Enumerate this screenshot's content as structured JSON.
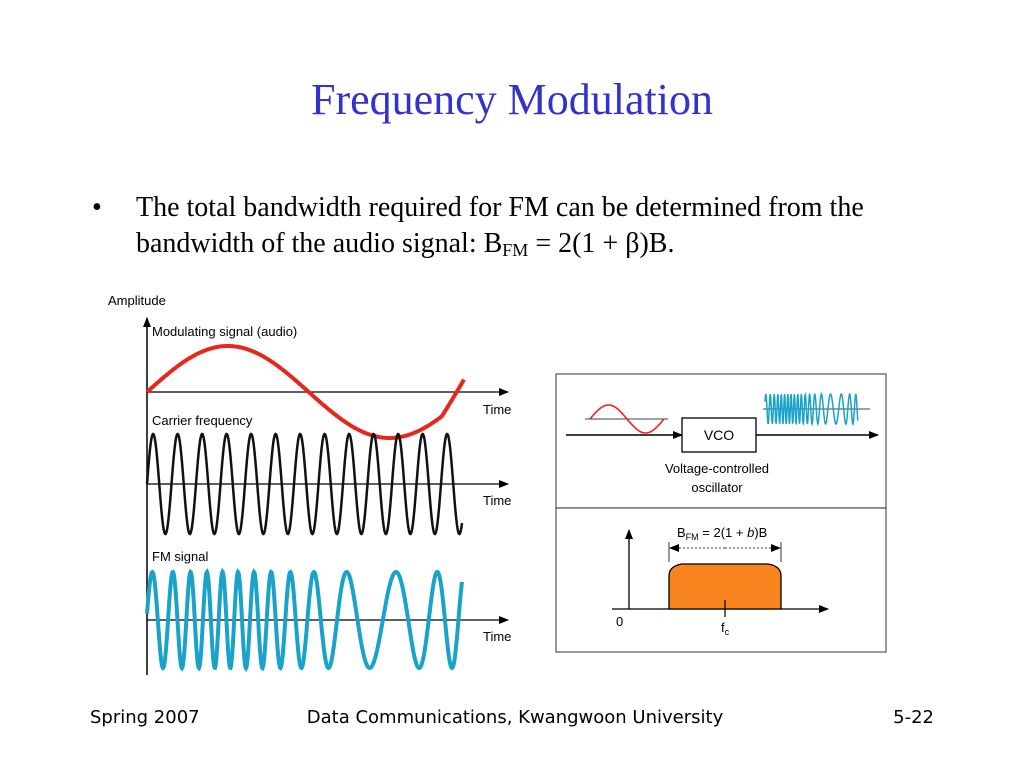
{
  "slide": {
    "title": "Frequency Modulation",
    "bullet_text": "The total bandwidth required for FM can be determined from the bandwidth of the audio signal: B",
    "bullet_sub": "FM",
    "bullet_tail": " = 2(1 + β)B."
  },
  "figure": {
    "amplitude_label": "Amplitude",
    "modulating_label": "Modulating signal (audio)",
    "carrier_label": "Carrier frequency",
    "fm_label": "FM signal",
    "time_label_1": "Time",
    "time_label_2": "Time",
    "time_label_3": "Time",
    "vco_label": "VCO",
    "vco_caption_line1": "Voltage-controlled",
    "vco_caption_line2": "oscillator",
    "bfm_B": "B",
    "bfm_sub": "FM",
    "bfm_eq_a": " = 2(1 + ",
    "bfm_b": "b",
    "bfm_eq_b": ")B",
    "zero_label": "0",
    "fc_f": "f",
    "fc_sub": "c"
  },
  "colors": {
    "title": "#3333cc",
    "modulating": "#e8261c",
    "carrier": "#111111",
    "fm": "#1aa3c9",
    "band": "#f7841e"
  },
  "footer": {
    "left": "Spring 2007",
    "center": "Data Communications, Kwangwoon University",
    "right": "5-22"
  }
}
